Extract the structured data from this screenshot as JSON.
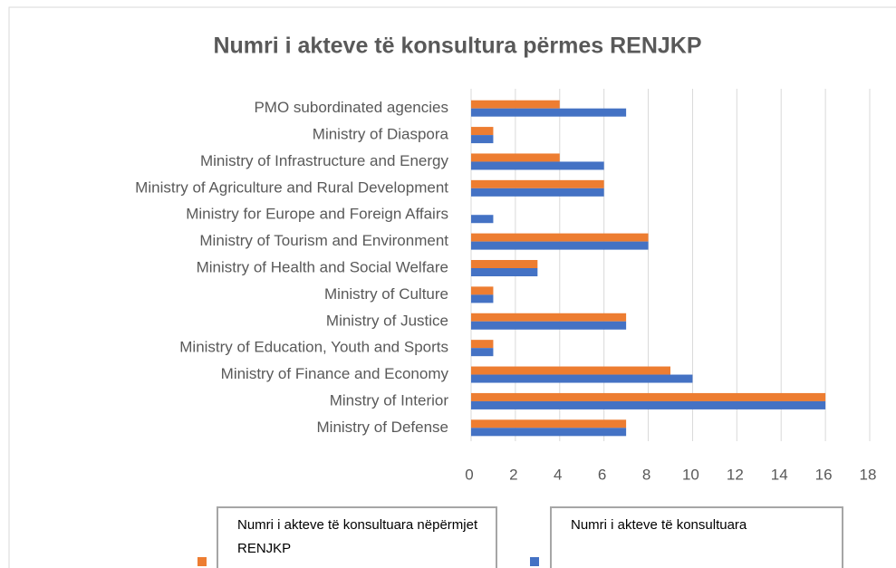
{
  "chart_data": {
    "type": "hbar",
    "title": "Numri i akteve të konsultura përmes RENJKP",
    "categories": [
      "PMO subordinated agencies",
      "Ministry of Diaspora",
      "Ministry of Infrastructure and Energy",
      "Ministry of Agriculture and Rural Development",
      "Ministry for Europe and Foreign Affairs",
      "Ministry of Tourism and Environment",
      "Ministry of Health and Social Welfare",
      "Ministry of Culture",
      "Ministry of Justice",
      "Ministry of Education, Youth and Sports",
      "Ministry of Finance and Economy",
      "Minstry of Interior",
      "Ministry of Defense"
    ],
    "series": [
      {
        "name": "Numri i akteve të konsultuara nëpërmjet RENJKP",
        "color": "#ed7d31",
        "values": [
          4,
          1,
          4,
          6,
          0,
          8,
          3,
          1,
          7,
          1,
          9,
          16,
          7
        ]
      },
      {
        "name": "Numri i akteve të konsultuara",
        "color": "#4472c4",
        "values": [
          7,
          1,
          6,
          6,
          1,
          8,
          3,
          1,
          7,
          1,
          10,
          16,
          7
        ]
      }
    ],
    "xlim": [
      0,
      18
    ],
    "xticks": [
      0,
      2,
      4,
      6,
      8,
      10,
      12,
      14,
      16,
      18
    ],
    "grid": true
  }
}
